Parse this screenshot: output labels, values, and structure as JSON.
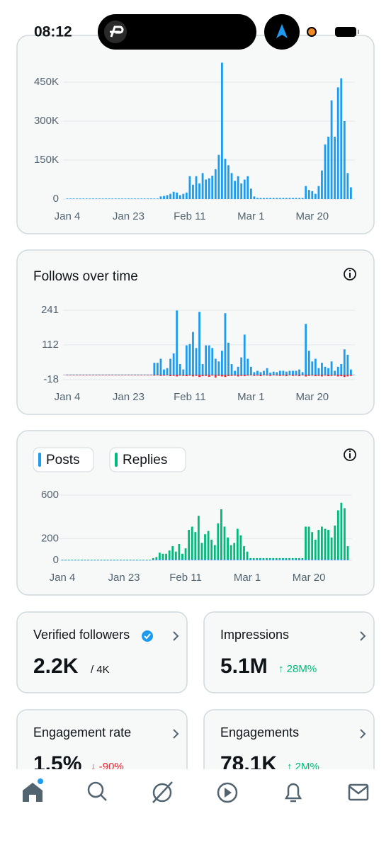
{
  "status_bar": {
    "time": "08:12"
  },
  "chart_data": [
    {
      "type": "bar",
      "color": "#1d9bf0",
      "grid": true,
      "categories": [
        "Jan 4",
        null,
        null,
        null,
        null,
        null,
        null,
        null,
        null,
        null,
        null,
        null,
        null,
        null,
        null,
        null,
        null,
        null,
        null,
        "Jan 23",
        null,
        null,
        null,
        null,
        null,
        null,
        null,
        null,
        null,
        null,
        null,
        null,
        null,
        null,
        null,
        null,
        null,
        null,
        "Feb 11",
        null,
        null,
        null,
        null,
        null,
        null,
        null,
        null,
        null,
        null,
        null,
        null,
        null,
        null,
        null,
        null,
        null,
        null,
        "Mar 1",
        null,
        null,
        null,
        null,
        null,
        null,
        null,
        null,
        null,
        null,
        null,
        null,
        null,
        null,
        null,
        null,
        null,
        null,
        "Mar 20",
        null,
        null,
        null,
        null,
        null,
        null,
        null,
        null,
        null,
        null,
        null,
        null
      ],
      "values": [
        2000,
        2000,
        2000,
        2000,
        2000,
        2000,
        2000,
        2000,
        2000,
        2000,
        2000,
        2000,
        2000,
        2000,
        2000,
        2000,
        2000,
        2000,
        2000,
        2000,
        2000,
        2000,
        2000,
        2000,
        2000,
        2000,
        2000,
        2000,
        2000,
        10000,
        12000,
        15000,
        20000,
        28000,
        25000,
        15000,
        20000,
        25000,
        88000,
        55000,
        88000,
        60000,
        100000,
        75000,
        80000,
        90000,
        115000,
        170000,
        525000,
        155000,
        130000,
        100000,
        70000,
        88000,
        60000,
        75000,
        88000,
        40000,
        10000,
        4000,
        4000,
        4000,
        4000,
        4000,
        4000,
        4000,
        4000,
        4000,
        4000,
        4000,
        4000,
        4000,
        4000,
        4000,
        50000,
        35000,
        30000,
        20000,
        50000,
        110000,
        210000,
        240000,
        380000,
        240000,
        430000,
        465000,
        300000,
        100000,
        45000
      ],
      "ylim": [
        0,
        525000
      ],
      "yticks": [
        0,
        {
          "value": 150000,
          "label": "150K"
        },
        {
          "value": 300000,
          "label": "300K"
        },
        {
          "value": 450000,
          "label": "450K"
        }
      ]
    },
    {
      "type": "bar",
      "title": "Follows over time",
      "grid": true,
      "categories": [
        "Jan 4",
        null,
        null,
        null,
        null,
        null,
        null,
        null,
        null,
        null,
        null,
        null,
        null,
        null,
        null,
        null,
        null,
        null,
        null,
        "Jan 23",
        null,
        null,
        null,
        null,
        null,
        null,
        null,
        null,
        null,
        null,
        null,
        null,
        null,
        null,
        null,
        null,
        null,
        null,
        "Feb 11",
        null,
        null,
        null,
        null,
        null,
        null,
        null,
        null,
        null,
        null,
        null,
        null,
        null,
        null,
        null,
        null,
        null,
        null,
        "Mar 1",
        null,
        null,
        null,
        null,
        null,
        null,
        null,
        null,
        null,
        null,
        null,
        null,
        null,
        null,
        null,
        null,
        null,
        null,
        "Mar 20",
        null,
        null,
        null,
        null,
        null,
        null,
        null,
        null,
        null,
        null,
        null,
        null
      ],
      "series": [
        {
          "color": "#1d9bf0",
          "values": [
            1,
            1,
            1,
            1,
            1,
            1,
            1,
            1,
            1,
            1,
            1,
            1,
            1,
            1,
            1,
            1,
            1,
            1,
            1,
            1,
            1,
            1,
            1,
            1,
            1,
            1,
            1,
            45,
            45,
            60,
            20,
            25,
            60,
            80,
            240,
            40,
            20,
            110,
            115,
            160,
            100,
            235,
            40,
            110,
            110,
            100,
            60,
            50,
            90,
            230,
            120,
            40,
            15,
            30,
            65,
            150,
            60,
            30,
            10,
            15,
            10,
            15,
            25,
            8,
            12,
            10,
            15,
            15,
            12,
            15,
            15,
            15,
            20,
            10,
            190,
            90,
            50,
            60,
            25,
            45,
            30,
            25,
            50,
            15,
            30,
            40,
            95,
            75,
            20
          ]
        },
        {
          "color": "#f4212e",
          "values": [
            0,
            0,
            0,
            0,
            0,
            0,
            0,
            0,
            0,
            0,
            0,
            0,
            0,
            0,
            0,
            0,
            0,
            0,
            0,
            0,
            0,
            0,
            0,
            0,
            0,
            0,
            0,
            -3,
            -2,
            -4,
            -3,
            -2,
            -5,
            -4,
            -6,
            -3,
            -4,
            -5,
            -3,
            -6,
            -4,
            -8,
            -5,
            -4,
            -7,
            -3,
            -10,
            -4,
            -6,
            -8,
            -5,
            -4,
            -3,
            -6,
            -4,
            -5,
            -3,
            -2,
            -4,
            -3,
            -5,
            -2,
            -3,
            -4,
            -2,
            -3,
            -4,
            -3,
            -5,
            -2,
            -4,
            -3,
            -5,
            -2,
            -6,
            -4,
            -3,
            -5,
            -4,
            -6,
            -3,
            -5,
            -4,
            -3,
            -6,
            -5,
            -8,
            -6,
            -4
          ]
        }
      ],
      "ylim": [
        -18,
        250
      ],
      "yticks": [
        -18,
        112,
        241
      ]
    },
    {
      "type": "bar",
      "stacked": true,
      "grid": true,
      "categories": [
        "Jan 4",
        null,
        null,
        null,
        null,
        null,
        null,
        null,
        null,
        null,
        null,
        null,
        null,
        null,
        null,
        null,
        null,
        null,
        null,
        "Jan 23",
        null,
        null,
        null,
        null,
        null,
        null,
        null,
        null,
        null,
        null,
        null,
        null,
        null,
        null,
        null,
        null,
        null,
        null,
        "Feb 11",
        null,
        null,
        null,
        null,
        null,
        null,
        null,
        null,
        null,
        null,
        null,
        null,
        null,
        null,
        null,
        null,
        null,
        null,
        "Mar 1",
        null,
        null,
        null,
        null,
        null,
        null,
        null,
        null,
        null,
        null,
        null,
        null,
        null,
        null,
        null,
        null,
        null,
        null,
        "Mar 20",
        null,
        null,
        null,
        null,
        null,
        null,
        null,
        null,
        null,
        null,
        null,
        null
      ],
      "series": [
        {
          "name": "Posts",
          "color": "#1d9bf0",
          "values": [
            2,
            2,
            2,
            2,
            2,
            2,
            2,
            2,
            2,
            2,
            2,
            2,
            2,
            2,
            2,
            2,
            2,
            2,
            2,
            2,
            2,
            2,
            2,
            2,
            2,
            2,
            2,
            2,
            10,
            10,
            10,
            10,
            10,
            10,
            10,
            10,
            10,
            10,
            10,
            10,
            10,
            10,
            10,
            10,
            10,
            10,
            10,
            10,
            10,
            10,
            10,
            10,
            10,
            10,
            10,
            10,
            10,
            10,
            10,
            10,
            10,
            10,
            10,
            10,
            10,
            10,
            10,
            10,
            10,
            10,
            10,
            10,
            10,
            10,
            10,
            10,
            10,
            10,
            10,
            10,
            10,
            10,
            10,
            10,
            10,
            10,
            10,
            10,
            10
          ]
        },
        {
          "name": "Replies",
          "color": "#00ba7c",
          "values": [
            3,
            3,
            3,
            3,
            3,
            3,
            3,
            3,
            3,
            3,
            3,
            3,
            3,
            3,
            3,
            3,
            3,
            3,
            3,
            3,
            3,
            3,
            3,
            3,
            3,
            3,
            3,
            3,
            10,
            20,
            60,
            50,
            50,
            80,
            120,
            70,
            140,
            50,
            100,
            270,
            300,
            250,
            400,
            150,
            230,
            260,
            180,
            130,
            330,
            460,
            300,
            200,
            130,
            150,
            280,
            220,
            120,
            70,
            10,
            10,
            10,
            10,
            10,
            10,
            10,
            10,
            10,
            10,
            10,
            10,
            10,
            10,
            10,
            10,
            10,
            300,
            300,
            250,
            180,
            270,
            300,
            280,
            270,
            200,
            310,
            450,
            520,
            470,
            120
          ]
        }
      ],
      "ylim": [
        0,
        600
      ],
      "yticks": [
        0,
        200,
        600
      ]
    }
  ],
  "cards": [
    {
      "title": "Verified followers",
      "value": "2.2K",
      "detail": "/ 4K"
    },
    {
      "title": "Impressions",
      "value": "5.1M",
      "change": "↑ 28M%"
    },
    {
      "title": "Engagement rate",
      "value": "1.5%",
      "change": "↓ -90%"
    },
    {
      "title": "Engagements",
      "value": "78.1K",
      "change": "↑ 2M%"
    }
  ]
}
